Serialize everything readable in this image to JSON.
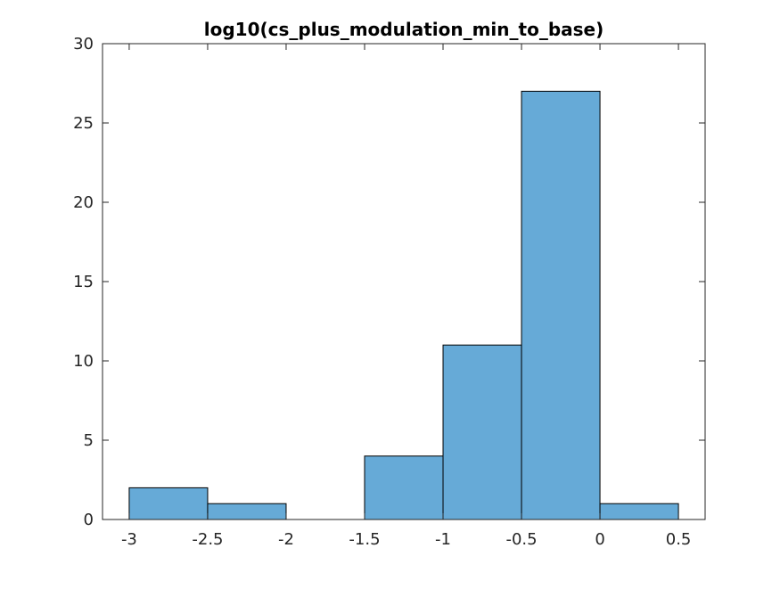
{
  "chart_data": {
    "type": "bar",
    "title": "log10(cs_plus_modulation_min_to_base)",
    "xlabel": "",
    "ylabel": "",
    "bin_edges": [
      -3,
      -2.5,
      -2,
      -1.5,
      -1,
      -0.5,
      0,
      0.5
    ],
    "values": [
      2,
      1,
      0,
      4,
      11,
      27,
      1
    ],
    "xlim": [
      -3.17,
      0.67
    ],
    "ylim": [
      0,
      30
    ],
    "xticks": [
      -3,
      -2.5,
      -2,
      -1.5,
      -1,
      -0.5,
      0,
      0.5
    ],
    "xtick_labels": [
      "-3",
      "-2.5",
      "-2",
      "-1.5",
      "-1",
      "-0.5",
      "0",
      "0.5"
    ],
    "yticks": [
      0,
      5,
      10,
      15,
      20,
      25,
      30
    ],
    "ytick_labels": [
      "0",
      "5",
      "10",
      "15",
      "20",
      "25",
      "30"
    ],
    "bar_color": "#66aad7",
    "edge_color": "#000000",
    "grid": false,
    "box": true
  }
}
